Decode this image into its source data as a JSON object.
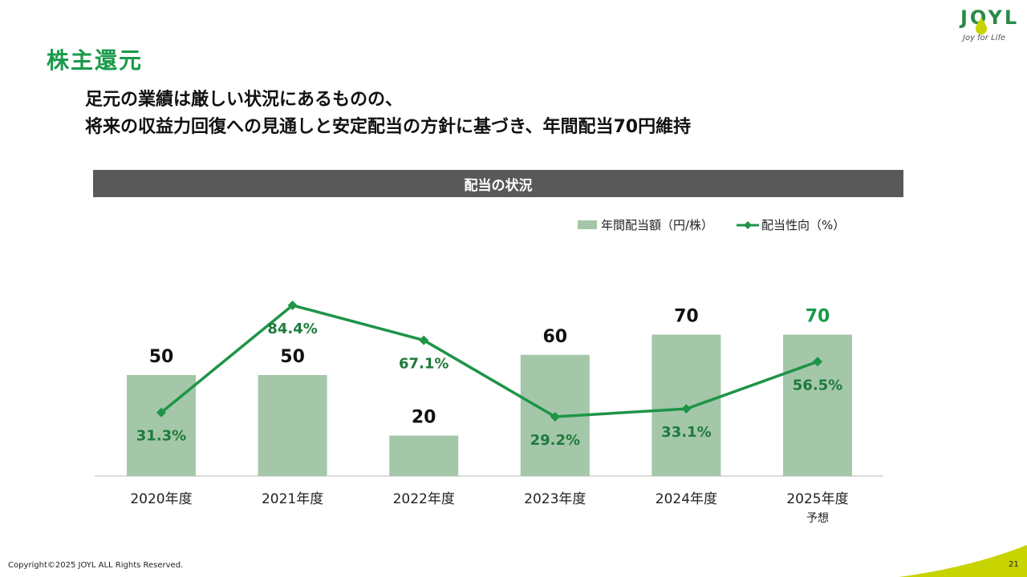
{
  "page": {
    "title": "株主還元",
    "headline_line1": "足元の業績は厳しい状況にあるものの、",
    "headline_line2": "将来の収益力回復への見通しと安定配当の方針に基づき、年間配当70円維持",
    "section_title": "配当の状況",
    "footer": "Copyright©2025 JOYL ALL Rights Reserved.",
    "page_number": "21"
  },
  "logo": {
    "text": "JOYL",
    "tagline": "Joy for Life",
    "icon": "oil-drop-icon"
  },
  "colors": {
    "brand_green": "#1a9a4a",
    "bar": "#a3c7a8",
    "line": "#1e9447",
    "line_label": "#1e7a3c",
    "section_bar": "#595959",
    "accent_yellow": "#c8d400"
  },
  "chart_data": {
    "type": "bar+line",
    "categories": [
      "2020年度",
      "2021年度",
      "2022年度",
      "2023年度",
      "2024年度",
      "2025年度"
    ],
    "category_notes": [
      "",
      "",
      "",
      "",
      "",
      "予想"
    ],
    "series": [
      {
        "name": "年間配当額（円/株）",
        "type": "bar",
        "values": [
          50,
          50,
          20,
          60,
          70,
          70
        ],
        "labels": [
          "50",
          "50",
          "20",
          "60",
          "70",
          "70"
        ]
      },
      {
        "name": "配当性向（%）",
        "type": "line",
        "values": [
          31.3,
          84.4,
          67.1,
          29.2,
          33.1,
          56.5
        ],
        "labels": [
          "31.3%",
          "84.4%",
          "67.1%",
          "29.2%",
          "33.1%",
          "56.5%"
        ]
      }
    ],
    "highlight_index": 5,
    "legend_position": "top-right"
  }
}
